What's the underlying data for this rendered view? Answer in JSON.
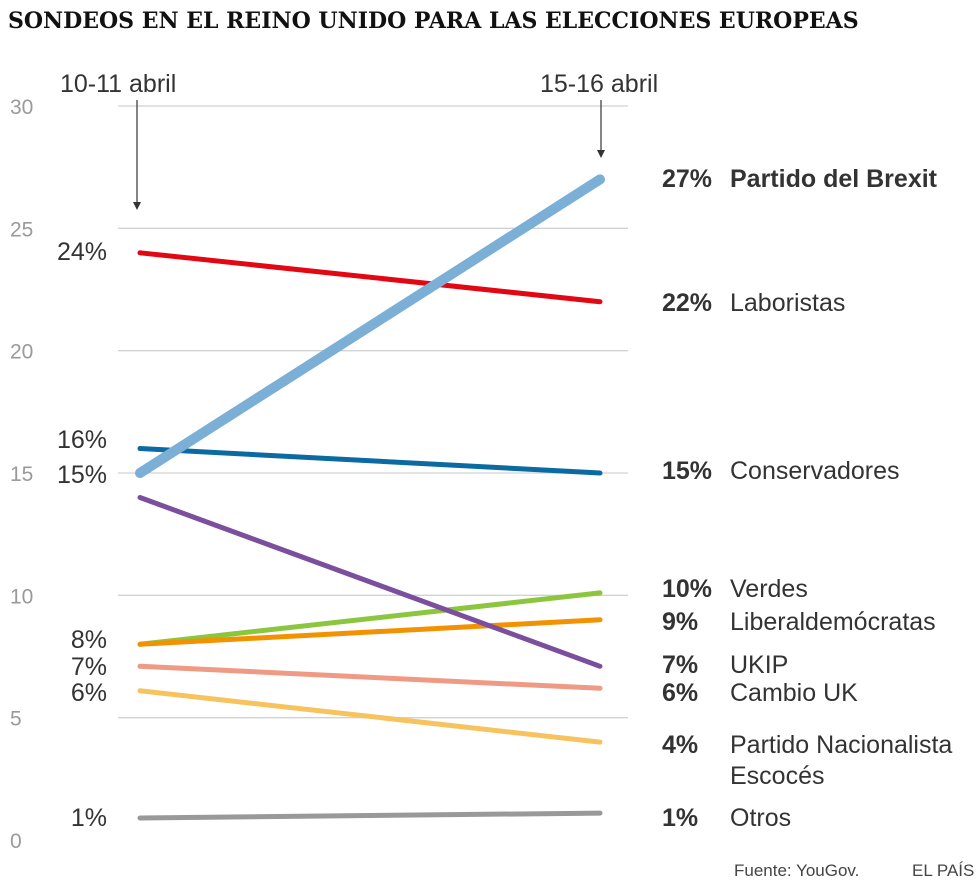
{
  "chart_data": {
    "type": "line",
    "title": "SONDEOS EN EL REINO UNIDO PARA LAS ELECCIONES EUROPEAS",
    "x": [
      "10-11 abril",
      "15-16 abril"
    ],
    "ylim": [
      0,
      30
    ],
    "yticks": [
      "0",
      "5",
      "10",
      "15",
      "20",
      "25",
      "30"
    ],
    "grid": true,
    "series": [
      {
        "name": "Partido del Brexit",
        "start": 15,
        "end": 27,
        "color": "#7bafd6",
        "end_label": "27%",
        "highlight": true
      },
      {
        "name": "Laboristas",
        "start": 24,
        "end": 22,
        "color": "#e30613",
        "end_label": "22%"
      },
      {
        "name": "Conservadores",
        "start": 16,
        "end": 15,
        "color": "#0a6aa1",
        "end_label": "15%"
      },
      {
        "name": "Verdes",
        "start": 8,
        "end": 10.1,
        "color": "#8cc63f",
        "end_label": "10%"
      },
      {
        "name": "Liberaldemócratas",
        "start": 8,
        "end": 9,
        "color": "#f39200",
        "end_label": "9%"
      },
      {
        "name": "UKIP",
        "start": 14,
        "end": 7.1,
        "color": "#7b4f9e",
        "end_label": "7%"
      },
      {
        "name": "Cambio UK",
        "start": 7.1,
        "end": 6.2,
        "color": "#ef9a85",
        "end_label": "6%"
      },
      {
        "name": "Partido Nacionalista Escocés",
        "name_lines": [
          "Partido Nacionalista",
          "Escocés"
        ],
        "start": 6.1,
        "end": 4,
        "color": "#f7c35f",
        "end_label": "4%"
      },
      {
        "name": "Otros",
        "start": 0.9,
        "end": 1.1,
        "color": "#999999",
        "end_label": "1%"
      }
    ],
    "start_labels": [
      "24%",
      "16%",
      "15%",
      "8%",
      "7%",
      "6%",
      "1%"
    ],
    "source": "Fuente: YouGov.",
    "credit": "EL PAÍS"
  }
}
